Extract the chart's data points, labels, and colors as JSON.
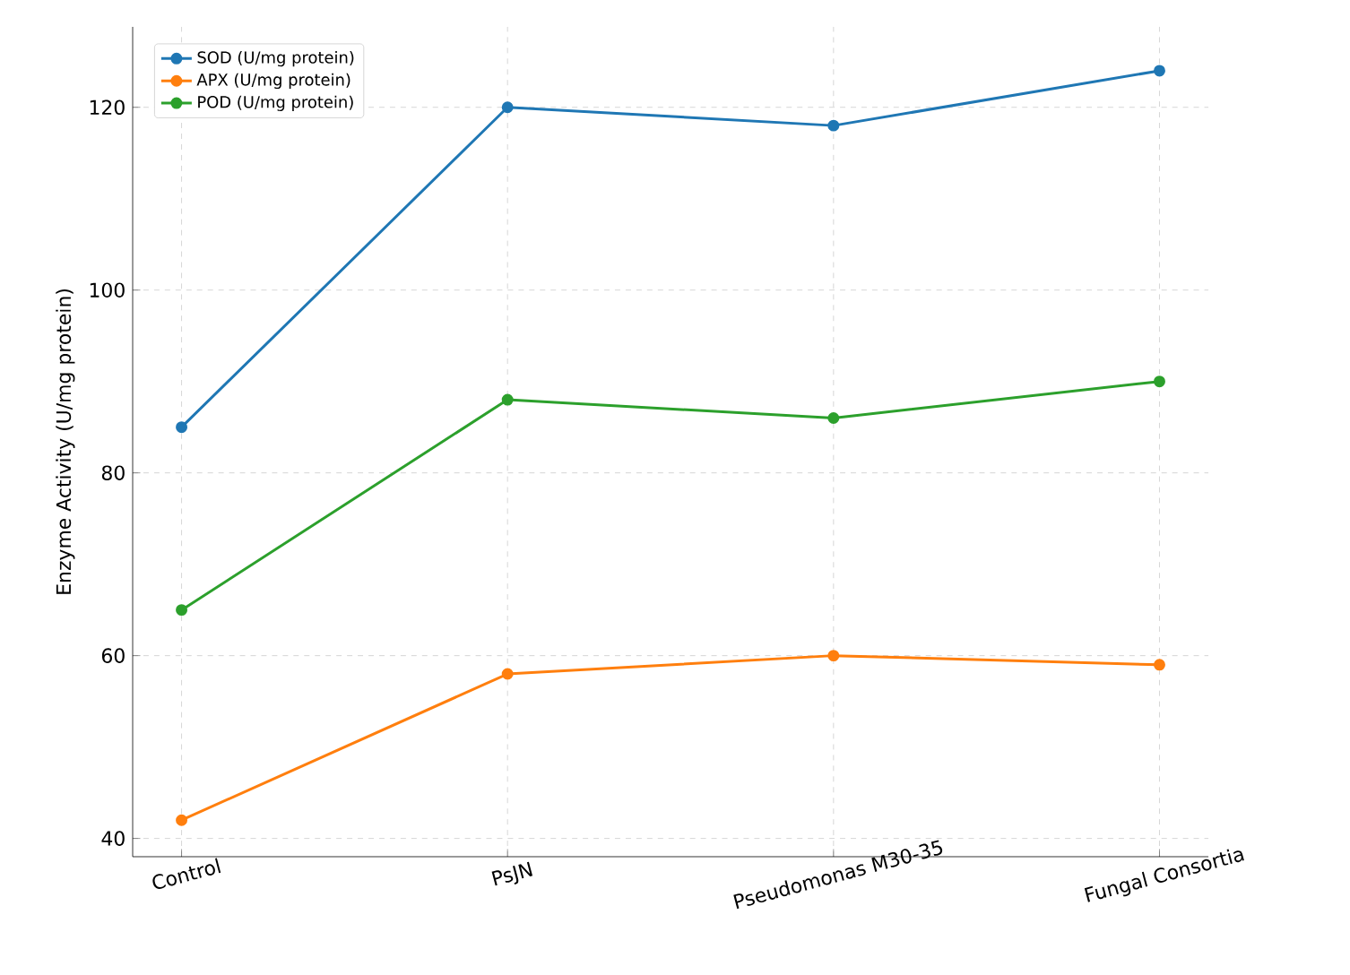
{
  "chart_data": {
    "type": "line",
    "ylabel": "Enzyme Activity (U/mg protein)",
    "categories": [
      "Control",
      "PsJN",
      "Pseudomonas M30-35",
      "Fungal Consortia"
    ],
    "series": [
      {
        "name": "SOD (U/mg protein)",
        "color": "#1f77b4",
        "values": [
          85,
          120,
          118,
          124
        ]
      },
      {
        "name": "APX (U/mg protein)",
        "color": "#ff7f0e",
        "values": [
          42,
          58,
          60,
          59
        ]
      },
      {
        "name": "POD (U/mg protein)",
        "color": "#2ca02c",
        "values": [
          65,
          88,
          86,
          90
        ]
      }
    ],
    "ylim": [
      38,
      128.8
    ],
    "yticks": [
      40,
      60,
      80,
      100,
      120
    ],
    "grid": true,
    "legend": "top left",
    "marker": "circle",
    "line_style": "solid"
  }
}
